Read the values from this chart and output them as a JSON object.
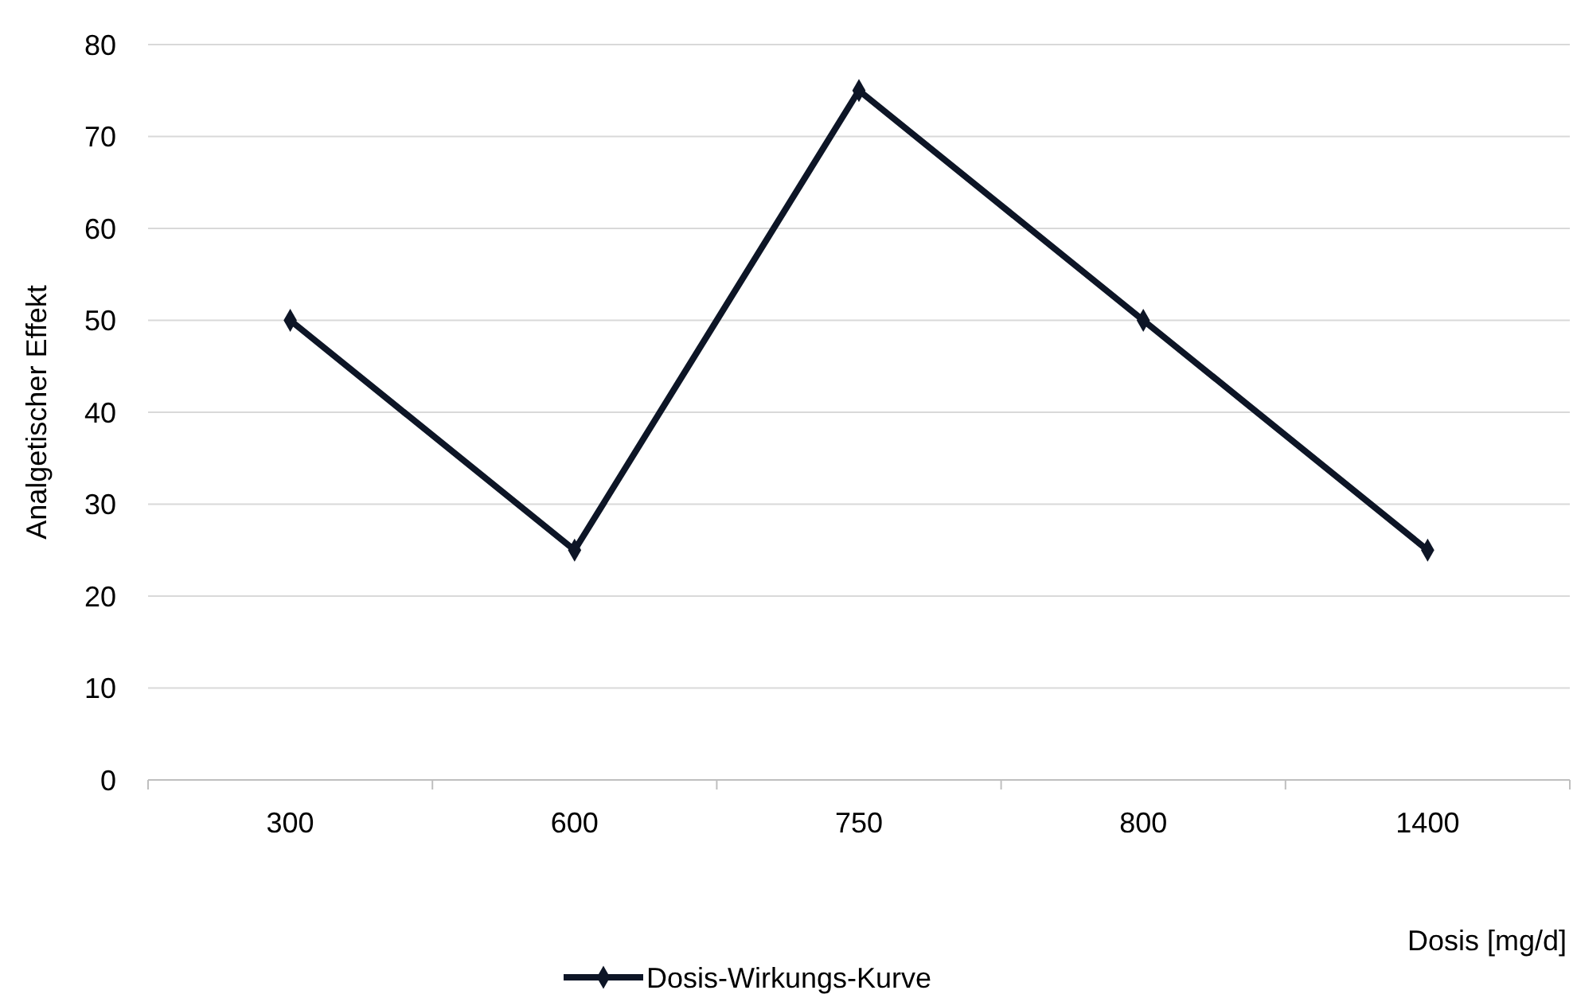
{
  "chart_data": {
    "type": "line",
    "xlabel": "Dosis [mg/d]",
    "ylabel": "Analgetischer Effekt",
    "categories": [
      "300",
      "600",
      "750",
      "800",
      "1400"
    ],
    "series": [
      {
        "name": "Dosis-Wirkungs-Kurve",
        "color": "#0d1526",
        "values": [
          50,
          25,
          75,
          50,
          25
        ]
      }
    ],
    "ylim": [
      0,
      80
    ],
    "yticks": [
      0,
      10,
      20,
      30,
      40,
      50,
      60,
      70,
      80
    ],
    "grid": "y",
    "legend": "bottom",
    "marker": "diamond",
    "line_style": "solid"
  }
}
